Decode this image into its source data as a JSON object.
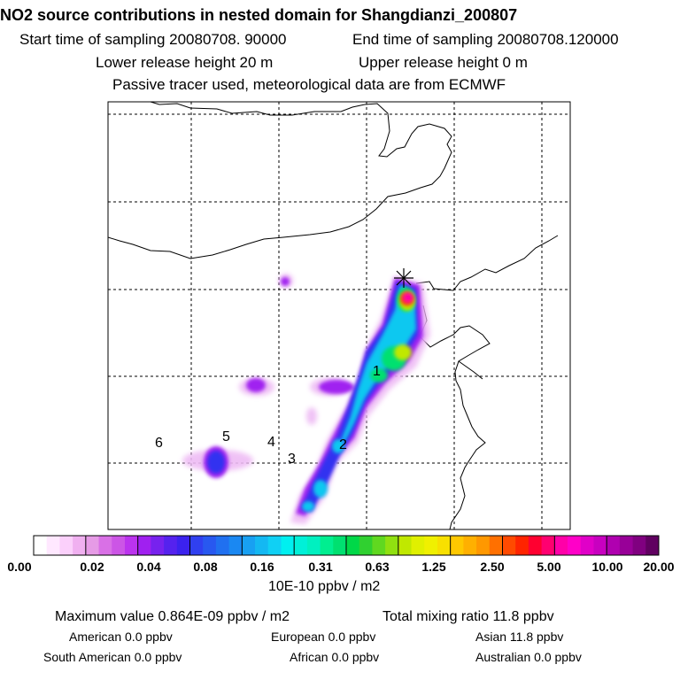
{
  "header": {
    "title": "NO2 source contributions in nested domain for Shangdianzi_200807",
    "start_label": "Start time of sampling 20080708. 90000",
    "end_label": "End time of sampling 20080708.120000",
    "lower_label": "Lower release height   20 m",
    "upper_label": "Upper release height    0 m",
    "tracer_label": "Passive tracer used, meteorological data are from ECMWF"
  },
  "map": {
    "region_labels": [
      "1",
      "2",
      "3",
      "4",
      "5",
      "6"
    ],
    "station_marker": "station-star-icon"
  },
  "colorbar": {
    "tick_labels": [
      "0.00",
      "0.02",
      "0.04",
      "0.08",
      "0.16",
      "0.31",
      "0.63",
      "1.25",
      "2.50",
      "5.00",
      "10.00",
      "20.00"
    ],
    "unit": "10E-10 ppbv / m2",
    "colors": [
      "#ffffff",
      "#ffe8ff",
      "#fbd0fb",
      "#f0b0f0",
      "#e69be6",
      "#d970e6",
      "#cc55e6",
      "#bb33ee",
      "#a020f0",
      "#7722ee",
      "#5522ee",
      "#3b22ee",
      "#3040f0",
      "#2858f0",
      "#2070f0",
      "#1a88f2",
      "#18a0f2",
      "#14b8f2",
      "#10d0f4",
      "#00f0f0",
      "#00f0d8",
      "#00f0c0",
      "#00ee90",
      "#00e070",
      "#00d848",
      "#30d030",
      "#60d820",
      "#90e010",
      "#c0e800",
      "#e0f000",
      "#f0f000",
      "#f8e000",
      "#ffc800",
      "#ffb000",
      "#ff9800",
      "#ff7000",
      "#ff4a00",
      "#ff2400",
      "#ff0030",
      "#ff0070",
      "#ff00a8",
      "#ff00c8",
      "#e000c8",
      "#c800c0",
      "#b000b0",
      "#980098",
      "#800080",
      "#600060"
    ]
  },
  "stats": {
    "max_label": "Maximum value  0.864E-09 ppbv / m2",
    "total_label": "Total mixing ratio       11.8 ppbv",
    "american": "American        0.0 ppbv",
    "european": "European        0.0 ppbv",
    "asian": "Asian     11.8 ppbv",
    "south_american": "South American        0.0 ppbv",
    "african": "African        0.0 ppbv",
    "australian": "Australian        0.0 ppbv"
  }
}
